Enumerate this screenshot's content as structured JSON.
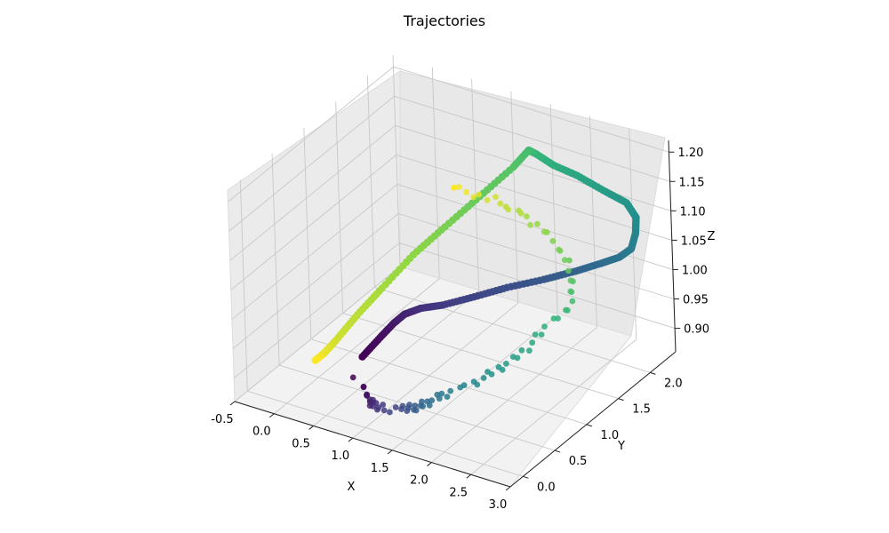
{
  "chart_data": {
    "type": "scatter",
    "title": "Trajectories",
    "xlabel": "X",
    "ylabel": "Y",
    "zlabel": "Z",
    "colormap": "viridis",
    "xlim": [
      -0.5,
      3.0
    ],
    "ylim": [
      -0.2,
      2.4
    ],
    "zlim": [
      0.86,
      1.22
    ],
    "x_ticks": [
      "-0.5",
      "0.0",
      "0.5",
      "1.0",
      "1.5",
      "2.0",
      "2.5",
      "3.0"
    ],
    "y_ticks": [
      "0.0",
      "0.5",
      "1.0",
      "1.5",
      "2.0"
    ],
    "z_ticks": [
      "0.90",
      "0.95",
      "1.00",
      "1.05",
      "1.10",
      "1.15",
      "1.20"
    ],
    "grid": true,
    "series": [
      {
        "style": "dense-line",
        "colors": [
          "#440154",
          "#443983",
          "#31688e",
          "#21918c",
          "#35b779",
          "#90d743",
          "#fde725"
        ],
        "points": [
          [
            -0.1,
            1.3,
            0.82
          ],
          [
            0.05,
            1.4,
            0.85
          ],
          [
            0.15,
            1.5,
            0.87
          ],
          [
            0.25,
            1.55,
            0.885
          ],
          [
            0.4,
            1.62,
            0.895
          ],
          [
            0.6,
            1.72,
            0.9
          ],
          [
            0.9,
            1.85,
            0.915
          ],
          [
            1.2,
            2.0,
            0.93
          ],
          [
            1.55,
            2.15,
            0.945
          ],
          [
            1.85,
            2.28,
            0.96
          ],
          [
            2.1,
            2.38,
            0.975
          ],
          [
            2.3,
            2.42,
            0.99
          ],
          [
            2.45,
            2.43,
            1.01
          ],
          [
            2.52,
            2.42,
            1.04
          ],
          [
            2.55,
            2.4,
            1.07
          ],
          [
            2.5,
            2.32,
            1.1
          ],
          [
            2.35,
            2.15,
            1.13
          ],
          [
            2.15,
            2.0,
            1.16
          ],
          [
            1.95,
            1.88,
            1.18
          ],
          [
            1.8,
            1.8,
            1.2
          ],
          [
            1.72,
            1.78,
            1.205
          ],
          [
            1.6,
            1.68,
            1.18
          ],
          [
            1.35,
            1.45,
            1.14
          ],
          [
            1.1,
            1.2,
            1.1
          ],
          [
            0.85,
            1.0,
            1.06
          ],
          [
            0.6,
            0.8,
            1.01
          ],
          [
            0.4,
            0.65,
            0.97
          ],
          [
            0.22,
            0.52,
            0.93
          ],
          [
            0.12,
            0.45,
            0.91
          ],
          [
            0.05,
            0.4,
            0.9
          ]
        ]
      },
      {
        "style": "scatter",
        "colors": [
          "#440154",
          "#443983",
          "#31688e",
          "#21918c",
          "#35b779",
          "#90d743",
          "#fde725"
        ],
        "points": [
          [
            0.0,
            1.1,
            0.8
          ],
          [
            0.1,
            1.05,
            0.79
          ],
          [
            0.2,
            1.0,
            0.785
          ],
          [
            0.3,
            0.95,
            0.79
          ],
          [
            0.4,
            0.9,
            0.795
          ],
          [
            0.55,
            0.85,
            0.8
          ],
          [
            0.7,
            0.8,
            0.81
          ],
          [
            0.85,
            0.75,
            0.82
          ],
          [
            1.0,
            0.7,
            0.83
          ],
          [
            1.15,
            0.65,
            0.845
          ],
          [
            1.3,
            0.6,
            0.86
          ],
          [
            1.45,
            0.6,
            0.875
          ],
          [
            1.6,
            0.6,
            0.89
          ],
          [
            1.75,
            0.65,
            0.905
          ],
          [
            1.9,
            0.7,
            0.92
          ],
          [
            2.05,
            0.78,
            0.935
          ],
          [
            2.2,
            0.85,
            0.95
          ],
          [
            2.35,
            0.95,
            0.97
          ],
          [
            2.45,
            1.05,
            0.99
          ],
          [
            2.55,
            1.15,
            1.01
          ],
          [
            2.6,
            1.25,
            1.03
          ],
          [
            2.55,
            1.35,
            1.05
          ],
          [
            2.45,
            1.45,
            1.07
          ],
          [
            2.3,
            1.5,
            1.09
          ],
          [
            2.1,
            1.55,
            1.105
          ],
          [
            1.9,
            1.55,
            1.12
          ],
          [
            1.7,
            1.5,
            1.13
          ],
          [
            1.5,
            1.45,
            1.14
          ],
          [
            1.3,
            1.38,
            1.15
          ],
          [
            1.15,
            1.3,
            1.16
          ]
        ]
      }
    ]
  }
}
